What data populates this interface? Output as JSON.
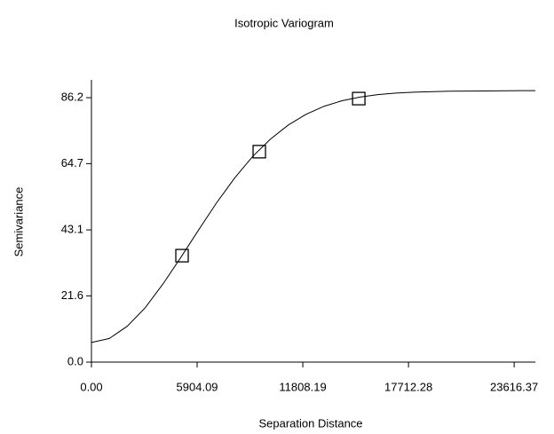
{
  "chart_data": {
    "type": "line",
    "title": "Isotropic Variogram",
    "xlabel": "Separation Distance",
    "ylabel": "Semivariance",
    "xlim": [
      0,
      24800
    ],
    "ylim": [
      0,
      92
    ],
    "xticks": [
      {
        "value": 0,
        "label": "0.00"
      },
      5904.09,
      11808.19,
      17712.28,
      23616.37
    ],
    "yticks": [
      {
        "value": 0,
        "label": "0.0"
      },
      21.6,
      43.1,
      64.7,
      86.2
    ],
    "series": [
      {
        "color": "#000000",
        "marker": "none",
        "x": [
          0,
          1000,
          2000,
          3000,
          4000,
          5000,
          6000,
          7000,
          8000,
          9000,
          10000,
          11000,
          12000,
          13000,
          14000,
          15000,
          16000,
          17000,
          18000,
          20000,
          22000,
          24000,
          24800
        ],
        "values": [
          6.4,
          7.7,
          11.7,
          17.7,
          25.5,
          34.2,
          43.2,
          52.0,
          60.0,
          67.0,
          72.7,
          77.3,
          80.8,
          83.4,
          85.2,
          86.4,
          87.2,
          87.7,
          88.0,
          88.3,
          88.4,
          88.5,
          88.5
        ]
      },
      {
        "color": "#000000",
        "marker": "square",
        "line": false,
        "x": [
          5061,
          9377,
          14934
        ],
        "values": [
          34.7,
          68.6,
          85.9
        ]
      }
    ]
  }
}
